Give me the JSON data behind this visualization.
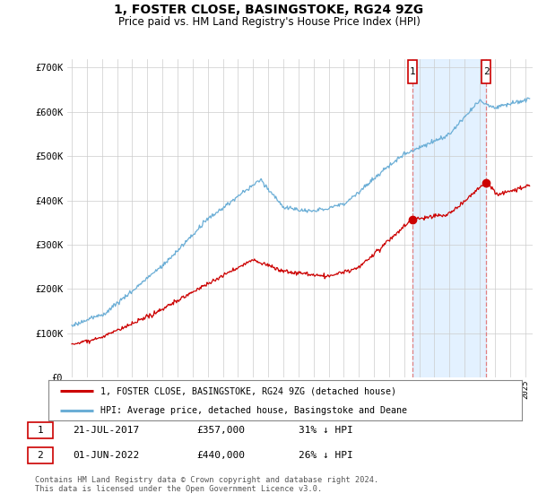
{
  "title": "1, FOSTER CLOSE, BASINGSTOKE, RG24 9ZG",
  "subtitle": "Price paid vs. HM Land Registry's House Price Index (HPI)",
  "ylim": [
    0,
    720000
  ],
  "yticks": [
    0,
    100000,
    200000,
    300000,
    400000,
    500000,
    600000,
    700000
  ],
  "ytick_labels": [
    "£0",
    "£100K",
    "£200K",
    "£300K",
    "£400K",
    "£500K",
    "£600K",
    "£700K"
  ],
  "hpi_color": "#6baed6",
  "hpi_fill_color": "#ddeeff",
  "price_color": "#cc0000",
  "dashed_color": "#e08080",
  "sale1_x": 2017.54,
  "sale1_y": 357000,
  "sale2_x": 2022.42,
  "sale2_y": 440000,
  "sale1_date": "21-JUL-2017",
  "sale1_price": "£357,000",
  "sale1_hpi": "31% ↓ HPI",
  "sale2_date": "01-JUN-2022",
  "sale2_price": "£440,000",
  "sale2_hpi": "26% ↓ HPI",
  "legend_label1": "1, FOSTER CLOSE, BASINGSTOKE, RG24 9ZG (detached house)",
  "legend_label2": "HPI: Average price, detached house, Basingstoke and Deane",
  "footer": "Contains HM Land Registry data © Crown copyright and database right 2024.\nThis data is licensed under the Open Government Licence v3.0.",
  "background_color": "#ffffff",
  "grid_color": "#cccccc",
  "xlim_left": 1994.7,
  "xlim_right": 2025.5
}
